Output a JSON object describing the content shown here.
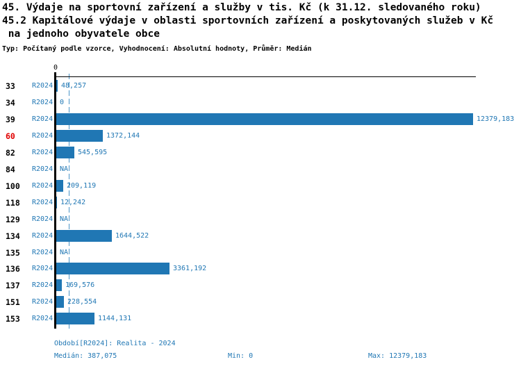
{
  "header": {
    "title_line1": "45. Výdaje na sportovní zařízení a služby v tis. Kč (k 31.12. sledovaného roku)",
    "title_line2": "45.2 Kapitálové výdaje v oblasti sportovních zařízení a poskytovaných služeb v Kč",
    "title_line3": " na jednoho obyvatele obce",
    "subtitle": "Typ: Počítaný podle vzorce, Vyhodnocení: Absolutní hodnoty, Průměr: Medián"
  },
  "chart_data": {
    "type": "bar",
    "orientation": "horizontal",
    "axis_zero_label": "0",
    "xlim": [
      0,
      12379.183
    ],
    "median_value": 387.075,
    "period": "R2024",
    "rows": [
      {
        "id": "33",
        "period": "R2024",
        "value": 48.257,
        "label": "48,257",
        "highlight": false
      },
      {
        "id": "34",
        "period": "R2024",
        "value": 0,
        "label": "0",
        "highlight": false
      },
      {
        "id": "39",
        "period": "R2024",
        "value": 12379.183,
        "label": "12379,183",
        "highlight": false
      },
      {
        "id": "60",
        "period": "R2024",
        "value": 1372.144,
        "label": "1372,144",
        "highlight": true
      },
      {
        "id": "82",
        "period": "R2024",
        "value": 545.595,
        "label": "545,595",
        "highlight": false
      },
      {
        "id": "84",
        "period": "R2024",
        "value": null,
        "label": "NA",
        "highlight": false
      },
      {
        "id": "100",
        "period": "R2024",
        "value": 209.119,
        "label": "209,119",
        "highlight": false
      },
      {
        "id": "118",
        "period": "R2024",
        "value": 12.242,
        "label": "12,242",
        "highlight": false
      },
      {
        "id": "129",
        "period": "R2024",
        "value": null,
        "label": "NA",
        "highlight": false
      },
      {
        "id": "134",
        "period": "R2024",
        "value": 1644.522,
        "label": "1644,522",
        "highlight": false
      },
      {
        "id": "135",
        "period": "R2024",
        "value": null,
        "label": "NA",
        "highlight": false
      },
      {
        "id": "136",
        "period": "R2024",
        "value": 3361.192,
        "label": "3361,192",
        "highlight": false
      },
      {
        "id": "137",
        "period": "R2024",
        "value": 169.576,
        "label": "169,576",
        "highlight": false
      },
      {
        "id": "151",
        "period": "R2024",
        "value": 228.554,
        "label": "228,554",
        "highlight": false
      },
      {
        "id": "153",
        "period": "R2024",
        "value": 1144.131,
        "label": "1144,131",
        "highlight": false
      }
    ]
  },
  "footer": {
    "period_label": "Období[R2024]: Realita - 2024",
    "median_label": "Medián: 387,075",
    "min_label": "Min: 0",
    "max_label": "Max: 12379,183"
  },
  "colors": {
    "bar": "#2077b4",
    "text_blue": "#2077b4",
    "highlight_red": "#e00000",
    "median_line": "#4a94c8",
    "axis": "#000000"
  }
}
